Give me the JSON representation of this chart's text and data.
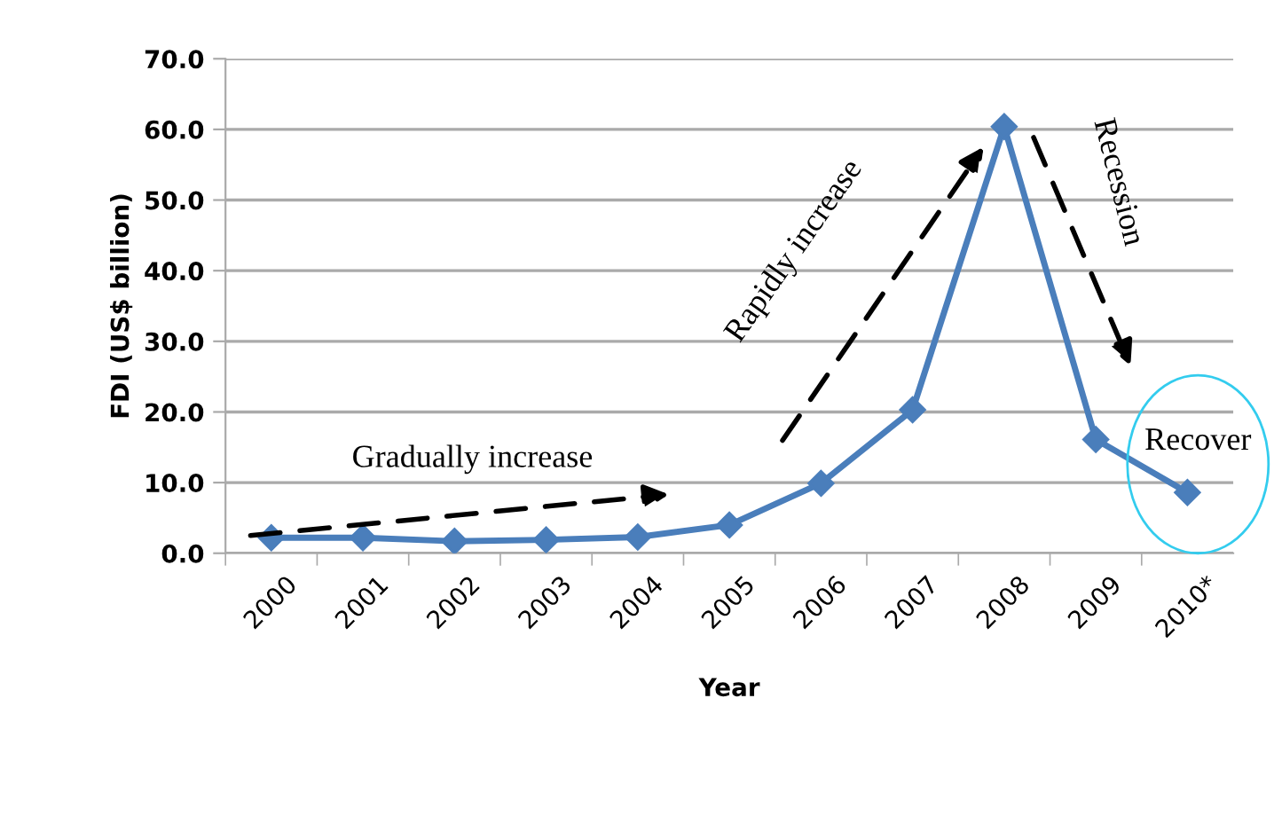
{
  "chart_data": {
    "type": "line",
    "xlabel": "Year",
    "ylabel": "FDI (US$ billion)",
    "categories": [
      "2000",
      "2001",
      "2002",
      "2003",
      "2004",
      "2005",
      "2006",
      "2007",
      "2008",
      "2009",
      "2010*"
    ],
    "series": [
      {
        "color": "#4a7ebb",
        "values": [
          2.2,
          2.2,
          1.7,
          1.9,
          2.3,
          4.0,
          9.9,
          20.3,
          60.4,
          16.1,
          8.6
        ]
      }
    ],
    "ylim": [
      0,
      70
    ],
    "yticks": [
      {
        "value": 0,
        "label": "0.0"
      },
      {
        "value": 10,
        "label": "10.0"
      },
      {
        "value": 20,
        "label": "20.0"
      },
      {
        "value": 30,
        "label": "30.0"
      },
      {
        "value": 40,
        "label": "40.0"
      },
      {
        "value": 50,
        "label": "50.0"
      },
      {
        "value": 60,
        "label": "60.0"
      },
      {
        "value": 70,
        "label": "70.0"
      }
    ],
    "grid": "y",
    "marker": "diamond",
    "line_style": "solid",
    "legend": false,
    "annotations": [
      "Gradually increase",
      "Rapidly increase",
      "Recession",
      "Recover"
    ]
  }
}
